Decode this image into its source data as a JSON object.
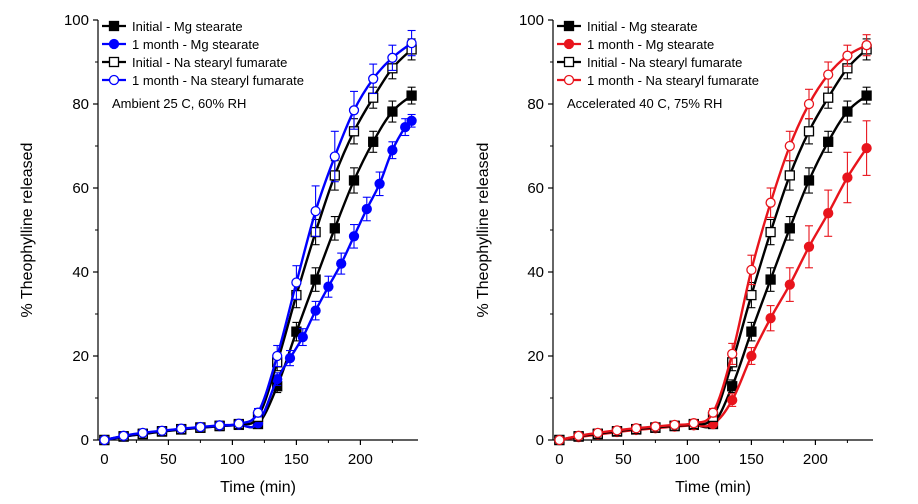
{
  "chart_data": [
    {
      "type": "line",
      "title": "",
      "annotation": "Ambient 25 C, 60% RH",
      "xlabel": "Time (min)",
      "ylabel": "% Theophylline released",
      "xlim": [
        -5,
        245
      ],
      "ylim": [
        0,
        100
      ],
      "xticks": [
        0,
        50,
        100,
        150,
        200
      ],
      "yticks": [
        0,
        20,
        40,
        60,
        80,
        100
      ],
      "grid": false,
      "legend_position": "top-left",
      "series": [
        {
          "name": "Initial - Mg stearate",
          "color": "#000000",
          "marker": "square",
          "filled": true,
          "x": [
            0,
            15,
            30,
            45,
            60,
            75,
            90,
            105,
            120,
            135,
            150,
            165,
            180,
            195,
            210,
            225,
            240
          ],
          "y": [
            0,
            0.8,
            1.4,
            2.0,
            2.5,
            2.9,
            3.3,
            3.6,
            3.8,
            12.8,
            25.8,
            38.2,
            50.4,
            61.8,
            71.0,
            78.2,
            82.0
          ],
          "err": [
            0.3,
            0.4,
            0.4,
            0.5,
            0.5,
            0.5,
            0.6,
            0.6,
            0.6,
            1.5,
            2.2,
            2.8,
            2.8,
            3.0,
            2.5,
            2.5,
            2.0
          ]
        },
        {
          "name": "1 month - Mg stearate",
          "color": "#0000ff",
          "marker": "circle",
          "filled": true,
          "x": [
            0,
            15,
            30,
            45,
            60,
            75,
            90,
            105,
            120,
            135,
            145,
            155,
            165,
            175,
            185,
            195,
            205,
            215,
            225,
            235,
            240
          ],
          "y": [
            0,
            0.8,
            1.5,
            2.1,
            2.6,
            3.0,
            3.3,
            3.6,
            4.0,
            14.5,
            19.5,
            24.5,
            30.8,
            36.5,
            42.0,
            48.5,
            55.0,
            61.0,
            69.0,
            74.5,
            76.0
          ],
          "err": [
            0.3,
            0.4,
            0.4,
            0.5,
            0.5,
            0.5,
            0.6,
            0.6,
            0.6,
            1.5,
            1.8,
            2.0,
            2.2,
            2.5,
            2.5,
            2.8,
            2.8,
            2.8,
            2.0,
            2.0,
            1.5
          ]
        },
        {
          "name": "Initial - Na stearyl fumarate",
          "color": "#000000",
          "marker": "square",
          "filled": false,
          "x": [
            0,
            15,
            30,
            45,
            60,
            75,
            90,
            105,
            120,
            135,
            150,
            165,
            180,
            195,
            210,
            225,
            240
          ],
          "y": [
            0,
            0.9,
            1.5,
            2.1,
            2.6,
            3.0,
            3.4,
            3.8,
            5.5,
            18.5,
            34.5,
            49.5,
            63.0,
            73.5,
            81.5,
            88.5,
            93.0
          ],
          "err": [
            0.3,
            0.4,
            0.4,
            0.5,
            0.5,
            0.5,
            0.6,
            0.6,
            1.0,
            2.0,
            3.0,
            3.0,
            3.5,
            3.0,
            2.5,
            2.5,
            2.5
          ]
        },
        {
          "name": "1 month - Na stearyl fumarate",
          "color": "#0000ff",
          "marker": "circle",
          "filled": false,
          "x": [
            0,
            15,
            30,
            45,
            60,
            75,
            90,
            105,
            120,
            135,
            150,
            165,
            180,
            195,
            210,
            225,
            240
          ],
          "y": [
            0,
            1.0,
            1.7,
            2.2,
            2.7,
            3.1,
            3.5,
            3.9,
            6.5,
            20.0,
            37.5,
            54.5,
            67.5,
            78.5,
            86.0,
            91.0,
            94.5
          ],
          "err": [
            0.3,
            0.4,
            0.4,
            0.5,
            0.5,
            0.5,
            0.6,
            0.6,
            1.0,
            2.5,
            4.0,
            6.0,
            6.0,
            4.5,
            3.5,
            3.0,
            3.0
          ]
        }
      ]
    },
    {
      "type": "line",
      "title": "",
      "annotation": "Accelerated 40 C, 75% RH",
      "xlabel": "Time (min)",
      "ylabel": "% Theophylline released",
      "xlim": [
        -5,
        245
      ],
      "ylim": [
        0,
        100
      ],
      "xticks": [
        0,
        50,
        100,
        150,
        200
      ],
      "yticks": [
        0,
        20,
        40,
        60,
        80,
        100
      ],
      "grid": false,
      "legend_position": "top-left",
      "series": [
        {
          "name": "Initial - Mg stearate",
          "color": "#000000",
          "marker": "square",
          "filled": true,
          "x": [
            0,
            15,
            30,
            45,
            60,
            75,
            90,
            105,
            120,
            135,
            150,
            165,
            180,
            195,
            210,
            225,
            240
          ],
          "y": [
            0,
            0.8,
            1.4,
            2.0,
            2.5,
            2.9,
            3.3,
            3.6,
            3.8,
            12.8,
            25.8,
            38.2,
            50.4,
            61.8,
            71.0,
            78.2,
            82.0
          ],
          "err": [
            0.3,
            0.4,
            0.4,
            0.5,
            0.5,
            0.5,
            0.6,
            0.6,
            0.6,
            1.5,
            2.2,
            2.8,
            2.8,
            3.0,
            2.5,
            2.5,
            2.0
          ]
        },
        {
          "name": "1 month - Mg stearate",
          "color": "#e8141c",
          "marker": "circle",
          "filled": true,
          "x": [
            0,
            15,
            30,
            45,
            60,
            75,
            90,
            105,
            120,
            135,
            150,
            165,
            180,
            195,
            210,
            225,
            240
          ],
          "y": [
            0,
            0.7,
            1.3,
            1.9,
            2.4,
            2.8,
            3.2,
            3.5,
            3.8,
            9.5,
            20.0,
            29.0,
            37.0,
            46.0,
            54.0,
            62.5,
            69.5
          ],
          "err": [
            0.3,
            0.4,
            0.4,
            0.5,
            0.5,
            0.5,
            0.6,
            0.6,
            0.6,
            1.5,
            2.0,
            3.0,
            4.0,
            5.0,
            5.5,
            6.0,
            6.5
          ]
        },
        {
          "name": "Initial - Na stearyl fumarate",
          "color": "#000000",
          "marker": "square",
          "filled": false,
          "x": [
            0,
            15,
            30,
            45,
            60,
            75,
            90,
            105,
            120,
            135,
            150,
            165,
            180,
            195,
            210,
            225,
            240
          ],
          "y": [
            0,
            0.9,
            1.5,
            2.1,
            2.6,
            3.0,
            3.4,
            3.8,
            5.5,
            18.5,
            34.5,
            49.5,
            63.0,
            73.5,
            81.5,
            88.5,
            93.0
          ],
          "err": [
            0.3,
            0.4,
            0.4,
            0.5,
            0.5,
            0.5,
            0.6,
            0.6,
            1.0,
            2.0,
            3.0,
            3.0,
            3.5,
            3.0,
            2.5,
            2.5,
            2.5
          ]
        },
        {
          "name": "1 month - Na stearyl fumarate",
          "color": "#e8141c",
          "marker": "circle",
          "filled": false,
          "x": [
            0,
            15,
            30,
            45,
            60,
            75,
            90,
            105,
            120,
            135,
            150,
            165,
            180,
            195,
            210,
            225,
            240
          ],
          "y": [
            0,
            1.0,
            1.7,
            2.3,
            2.8,
            3.2,
            3.6,
            4.0,
            6.5,
            20.5,
            40.5,
            56.5,
            70.0,
            80.0,
            87.0,
            91.5,
            94.0
          ],
          "err": [
            0.3,
            0.4,
            0.4,
            0.5,
            0.5,
            0.5,
            0.6,
            0.6,
            1.0,
            2.5,
            3.5,
            3.5,
            3.5,
            3.5,
            3.0,
            2.5,
            2.5
          ]
        }
      ]
    }
  ]
}
